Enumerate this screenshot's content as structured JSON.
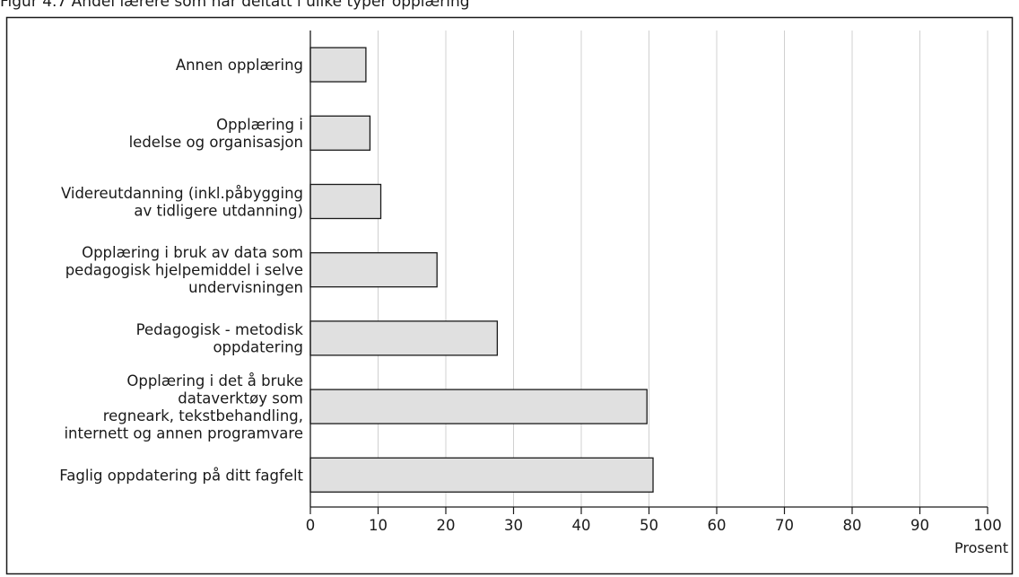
{
  "caption": "Figur 4.7 Andel lærere som har deltatt i ulike typer opplæring",
  "chart_data": {
    "type": "bar",
    "orientation": "horizontal",
    "categories": [
      [
        "Annen opplæring"
      ],
      [
        "Opplæring i",
        "ledelse og organisasjon"
      ],
      [
        "Videreutdanning (inkl.påbygging",
        "av tidligere utdanning)"
      ],
      [
        "Opplæring i bruk av data som",
        "pedagogisk hjelpemiddel i selve",
        "undervisningen"
      ],
      [
        "Pedagogisk - metodisk",
        "oppdatering"
      ],
      [
        "Opplæring i det å bruke",
        "dataverktøy som",
        "regneark, tekstbehandling,",
        "internett og annen programvare"
      ],
      [
        "Faglig oppdatering på ditt fagfelt"
      ]
    ],
    "values": [
      8.2,
      8.8,
      10.4,
      18.7,
      27.6,
      49.7,
      50.6
    ],
    "xlim": [
      0,
      100
    ],
    "xticks": [
      0,
      10,
      20,
      30,
      40,
      50,
      60,
      70,
      80,
      90,
      100
    ],
    "xlabel": "Prosent",
    "grid": true,
    "bar_color": "#e0e0e0",
    "bar_edge_color": "#1a1a1a",
    "grid_color": "#d0d0d0"
  }
}
